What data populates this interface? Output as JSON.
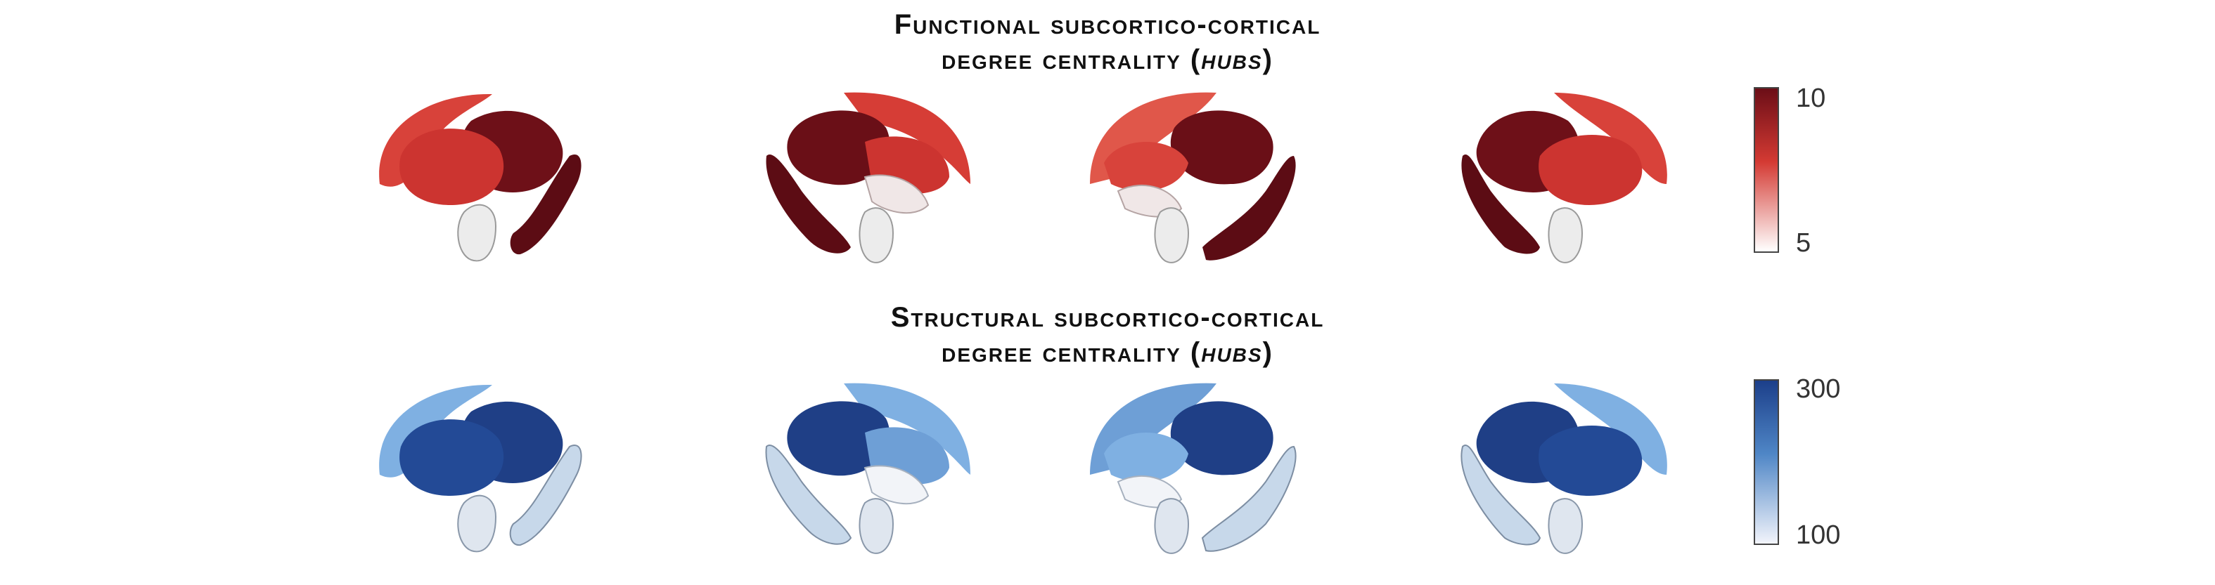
{
  "panels": [
    {
      "id": "functional",
      "title": {
        "line1": "Functional subcortico-cortical",
        "line2_prefix": "degree centrality (",
        "line2_italic": "hubs",
        "line2_suffix": ")"
      },
      "colorbar": {
        "max_label": "10",
        "min_label": "5",
        "color_high": "#6b0e17",
        "color_mid": "#d43a33",
        "color_low": "#ffffff"
      },
      "colors": {
        "dark": "#6e1018",
        "mid": "#c9302c",
        "light": "#e24a40",
        "pale": "#ececec",
        "salmon": "#e0574a"
      }
    },
    {
      "id": "structural",
      "title": {
        "line1": "Structural subcortico-cortical",
        "line2_prefix": "degree centrality (",
        "line2_italic": "hubs",
        "line2_suffix": ")"
      },
      "colorbar": {
        "max_label": "300",
        "min_label": "100",
        "color_high": "#1c3f8a",
        "color_mid": "#4f86c6",
        "color_low": "#f2f4fb"
      },
      "colors": {
        "dark": "#1f3f86",
        "mid": "#234a96",
        "light": "#7fb0e2",
        "pale": "#c7d8ea",
        "salmon": "#6e9fd6"
      }
    }
  ]
}
